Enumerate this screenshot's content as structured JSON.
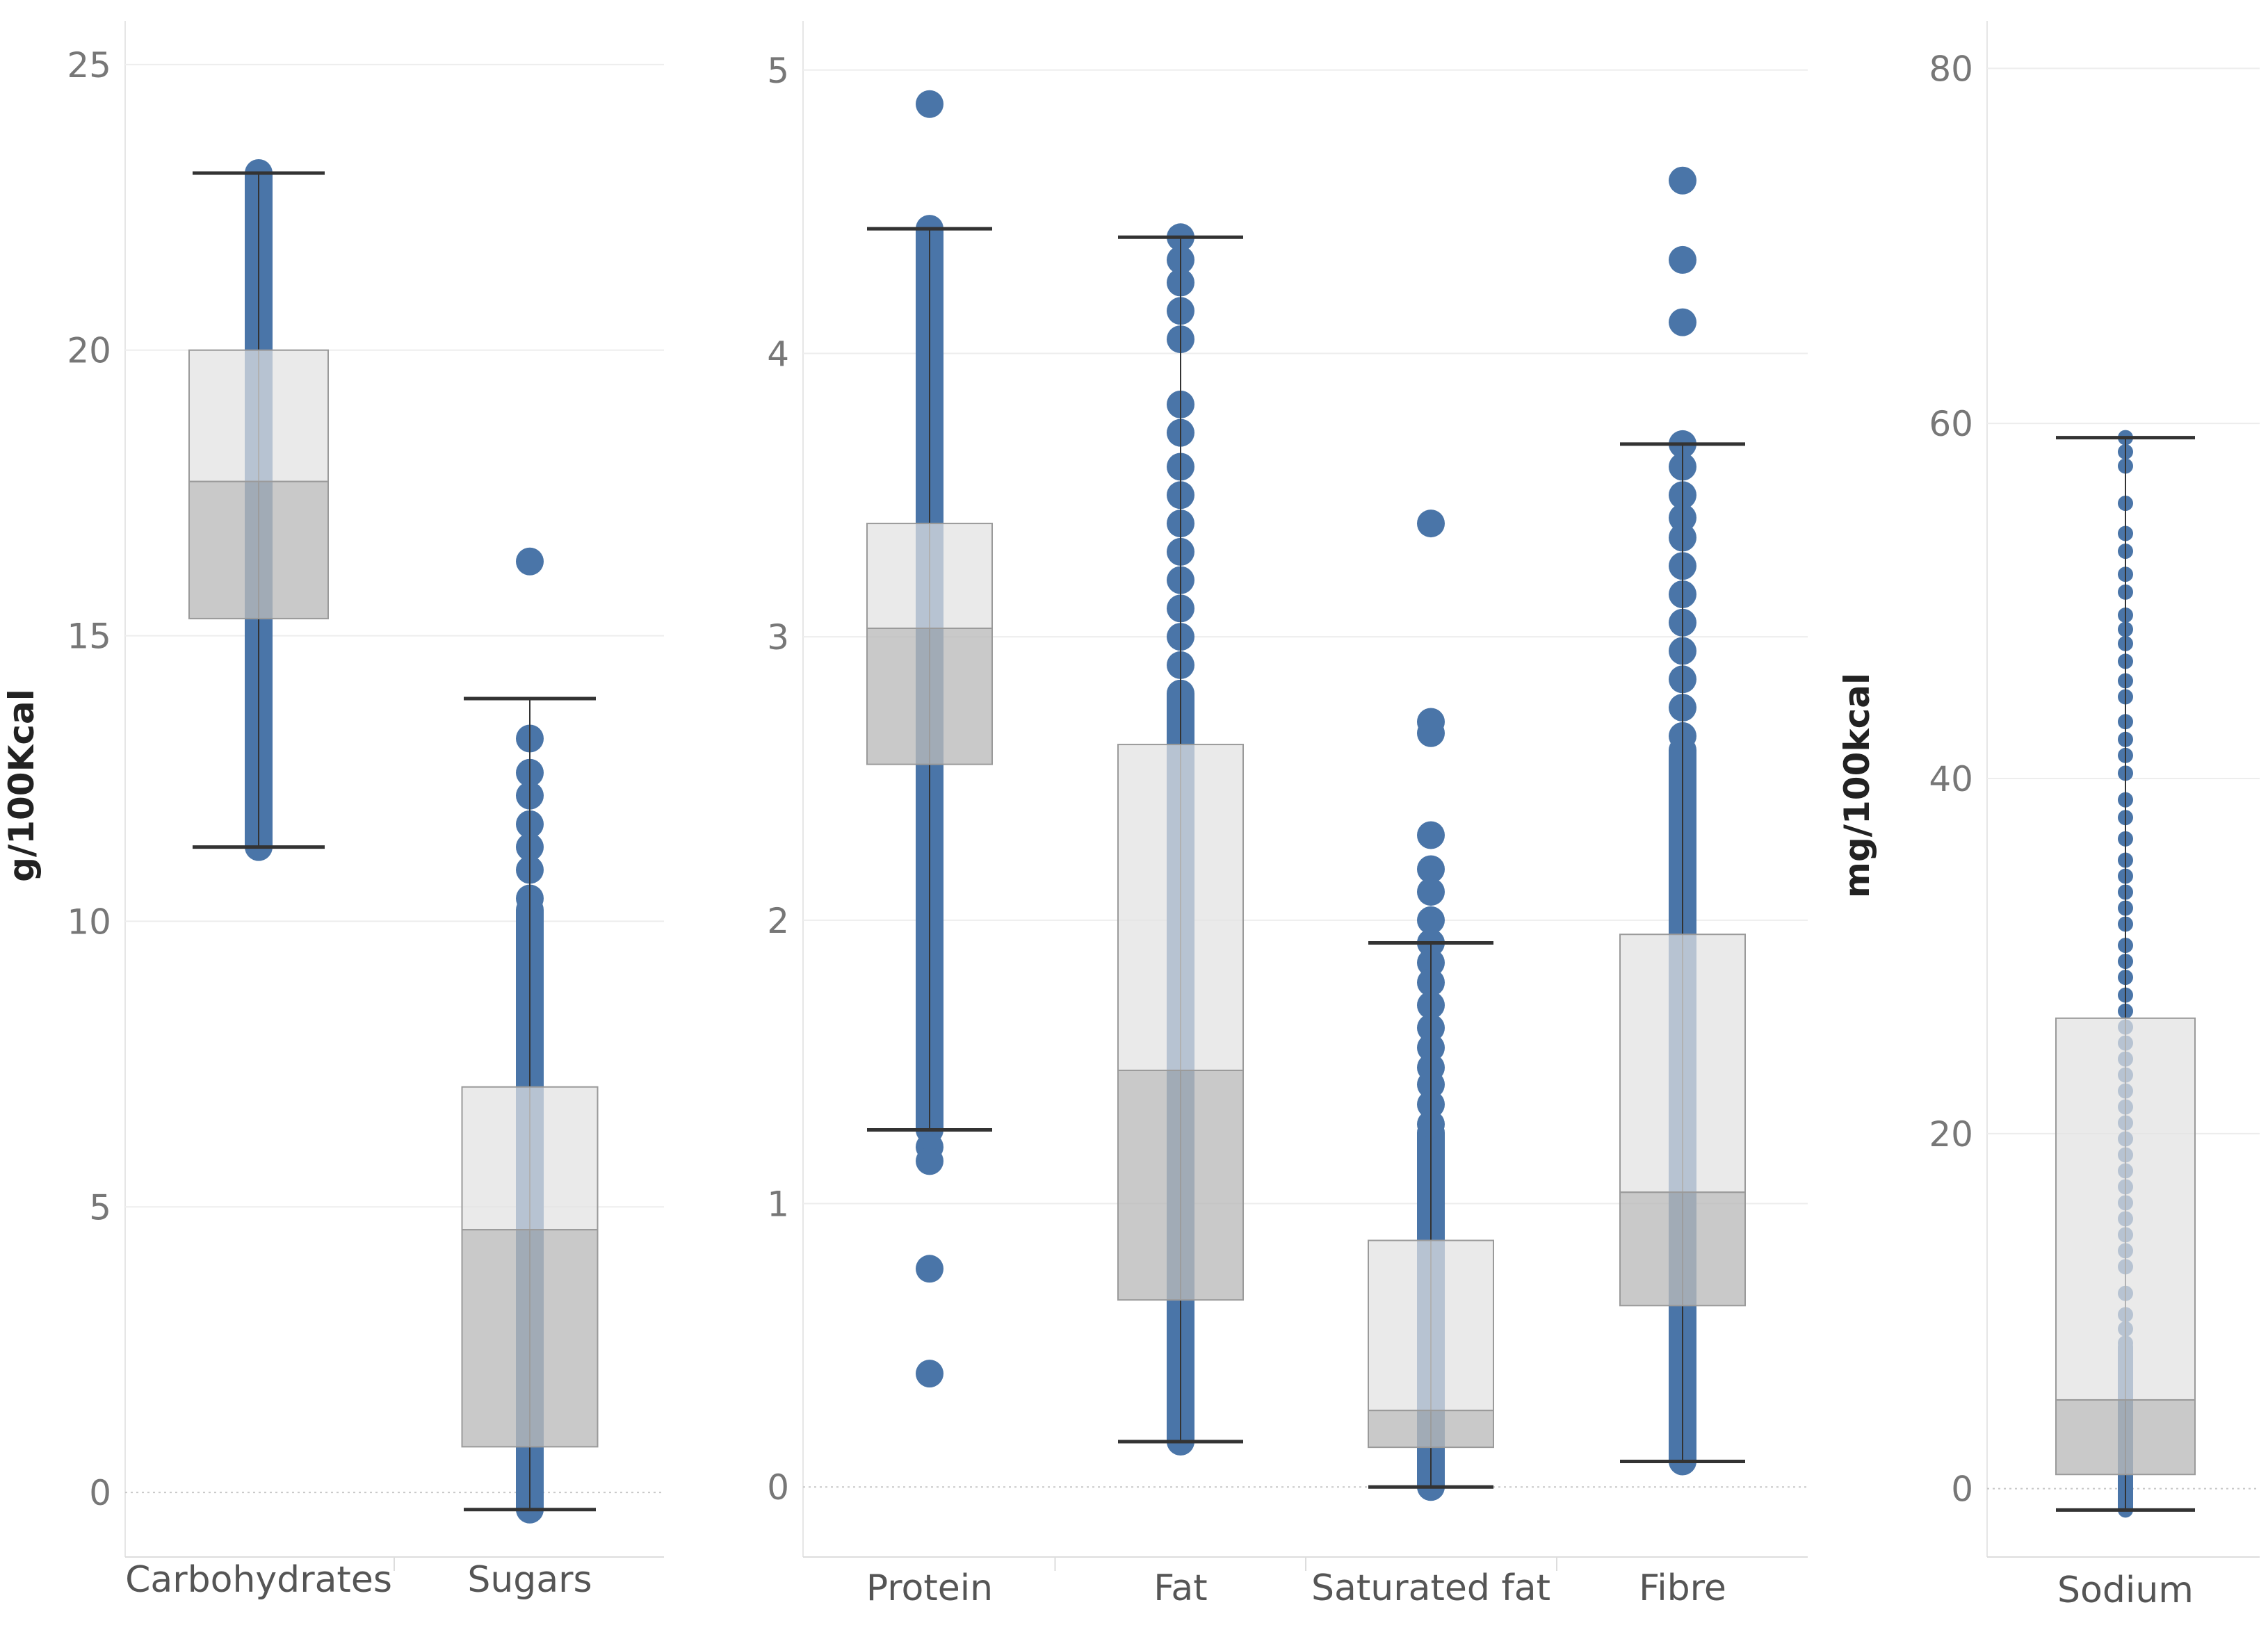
{
  "colors": {
    "dot": "#4a75a8",
    "box_upper": "#e2e2e2",
    "box_lower": "#bababa",
    "whisker": "#333333",
    "grid": "#ededed",
    "tick_text": "#777777",
    "label_text": "#555555",
    "ylabel_text": "#222222"
  },
  "chart_data": [
    {
      "type": "box",
      "ylabel": "g/100Kcal",
      "ylim": [
        -0.4,
        25.4
      ],
      "yticks": [
        "0",
        "5",
        "10",
        "15",
        "20",
        "25"
      ],
      "ytick_values": [
        0,
        5,
        10,
        15,
        20,
        25
      ],
      "categories": [
        {
          "name": "Carbohydrates",
          "min": 11.3,
          "q1": 15.3,
          "median": 17.7,
          "q3": 20.0,
          "max": 23.1,
          "dot_size": "large",
          "outliers": [],
          "dense_ranges": [
            [
              11.3,
              23.1
            ]
          ]
        },
        {
          "name": "Sugars",
          "min": -0.3,
          "q1": 0.8,
          "median": 4.6,
          "q3": 7.1,
          "max": 13.9,
          "dot_size": "large",
          "outliers": [
            16.3
          ],
          "points": [
            13.2,
            12.6,
            12.2,
            11.7,
            11.3,
            10.9,
            10.4
          ],
          "dense_ranges": [
            [
              -0.3,
              10.2
            ]
          ]
        }
      ]
    },
    {
      "type": "box",
      "ylabel": "",
      "ylim": [
        -0.1,
        5.1
      ],
      "yticks": [
        "0",
        "1",
        "2",
        "3",
        "4",
        "5"
      ],
      "ytick_values": [
        0,
        1,
        2,
        3,
        4,
        5
      ],
      "categories": [
        {
          "name": "Protein",
          "min": 1.26,
          "q1": 2.55,
          "median": 3.03,
          "q3": 3.4,
          "max": 4.44,
          "dot_size": "large",
          "outliers": [
            4.88,
            0.77,
            0.4
          ],
          "points": [
            1.2,
            1.15
          ],
          "dense_ranges": [
            [
              1.26,
              4.44
            ]
          ]
        },
        {
          "name": "Fat",
          "min": 0.16,
          "q1": 0.66,
          "median": 1.47,
          "q3": 2.62,
          "max": 4.41,
          "dot_size": "large",
          "outliers": [],
          "points": [
            4.41,
            4.33,
            4.25,
            4.15,
            4.05,
            3.82,
            3.72,
            3.6,
            3.5,
            3.4,
            3.3,
            3.2,
            3.1,
            3.0,
            2.9
          ],
          "dense_ranges": [
            [
              0.16,
              2.8
            ]
          ]
        },
        {
          "name": "Saturated fat",
          "min": 0.0,
          "q1": 0.14,
          "median": 0.27,
          "q3": 0.87,
          "max": 1.92,
          "dot_size": "large",
          "outliers": [
            3.4,
            2.7,
            2.66,
            2.3,
            2.18,
            2.1,
            2.0
          ],
          "points": [
            1.92,
            1.85,
            1.78,
            1.7,
            1.62,
            1.55,
            1.48,
            1.42,
            1.35,
            1.28
          ],
          "dense_ranges": [
            [
              0.0,
              1.25
            ]
          ]
        },
        {
          "name": "Fibre",
          "min": 0.09,
          "q1": 0.64,
          "median": 1.04,
          "q3": 1.95,
          "max": 3.68,
          "dot_size": "large",
          "outliers": [
            4.61,
            4.33,
            4.11
          ],
          "points": [
            3.68,
            3.6,
            3.5,
            3.42,
            3.35,
            3.25,
            3.15,
            3.05,
            2.95,
            2.85,
            2.75,
            2.65
          ],
          "dense_ranges": [
            [
              0.09,
              2.6
            ]
          ]
        }
      ]
    },
    {
      "type": "box",
      "ylabel": "mg/100kcal",
      "ylim": [
        -1.5,
        81.5
      ],
      "yticks": [
        "0",
        "20",
        "40",
        "60",
        "80"
      ],
      "ytick_values": [
        0,
        20,
        40,
        60,
        80
      ],
      "categories": [
        {
          "name": "Sodium",
          "min": -1.2,
          "q1": 0.8,
          "median": 5.0,
          "q3": 26.5,
          "max": 59.2,
          "dot_size": "small",
          "outliers": [],
          "points": [
            59.2,
            58.4,
            57.6,
            55.5,
            53.8,
            52.8,
            51.5,
            50.5,
            49.2,
            48.4,
            47.6,
            46.6,
            45.5,
            44.6,
            43.2,
            42.2,
            41.3,
            40.3,
            38.8,
            37.8,
            36.6,
            35.4,
            34.5,
            33.6,
            32.7,
            31.8,
            30.6,
            29.7,
            28.8,
            27.8,
            26.9,
            26.0,
            25.1,
            24.2,
            23.3,
            22.4,
            21.5,
            20.6,
            19.7,
            18.8,
            17.9,
            17.0,
            16.1,
            15.2,
            14.3,
            13.4,
            12.5,
            11.0,
            9.8,
            9.0,
            8.2
          ],
          "dense_ranges": [
            [
              -1.2,
              8.0
            ]
          ]
        }
      ]
    }
  ]
}
